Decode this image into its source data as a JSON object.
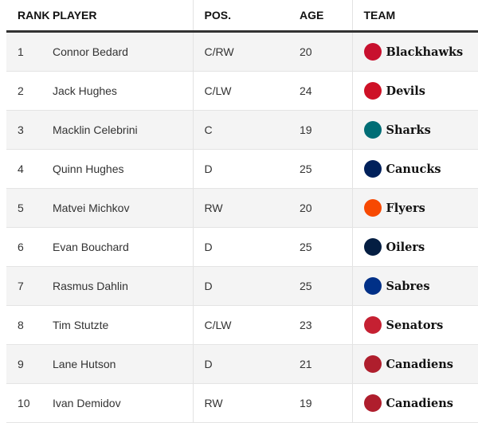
{
  "headers": {
    "rank": "RANK",
    "player": "PLAYER",
    "pos": "POS.",
    "age": "AGE",
    "team": "TEAM"
  },
  "rows": [
    {
      "rank": "1",
      "player": "Connor Bedard",
      "pos": "C/RW",
      "age": "20",
      "team": "Blackhawks",
      "logo": "blackhawks-logo",
      "color": "#c8102e"
    },
    {
      "rank": "2",
      "player": "Jack Hughes",
      "pos": "C/LW",
      "age": "24",
      "team": "Devils",
      "logo": "devils-logo",
      "color": "#ce1126"
    },
    {
      "rank": "3",
      "player": "Macklin Celebrini",
      "pos": "C",
      "age": "19",
      "team": "Sharks",
      "logo": "sharks-logo",
      "color": "#006d75"
    },
    {
      "rank": "4",
      "player": "Quinn Hughes",
      "pos": "D",
      "age": "25",
      "team": "Canucks",
      "logo": "canucks-logo",
      "color": "#00205b"
    },
    {
      "rank": "5",
      "player": "Matvei Michkov",
      "pos": "RW",
      "age": "20",
      "team": "Flyers",
      "logo": "flyers-logo",
      "color": "#f74902"
    },
    {
      "rank": "6",
      "player": "Evan Bouchard",
      "pos": "D",
      "age": "25",
      "team": "Oilers",
      "logo": "oilers-logo",
      "color": "#041e42"
    },
    {
      "rank": "7",
      "player": "Rasmus Dahlin",
      "pos": "D",
      "age": "25",
      "team": "Sabres",
      "logo": "sabres-logo",
      "color": "#003087"
    },
    {
      "rank": "8",
      "player": "Tim Stutzte",
      "pos": "C/LW",
      "age": "23",
      "team": "Senators",
      "logo": "senators-logo",
      "color": "#c52032"
    },
    {
      "rank": "9",
      "player": "Lane Hutson",
      "pos": "D",
      "age": "21",
      "team": "Canadiens",
      "logo": "canadiens-logo",
      "color": "#af1e2d"
    },
    {
      "rank": "10",
      "player": "Ivan Demidov",
      "pos": "RW",
      "age": "19",
      "team": "Canadiens",
      "logo": "canadiens-logo",
      "color": "#af1e2d"
    }
  ]
}
